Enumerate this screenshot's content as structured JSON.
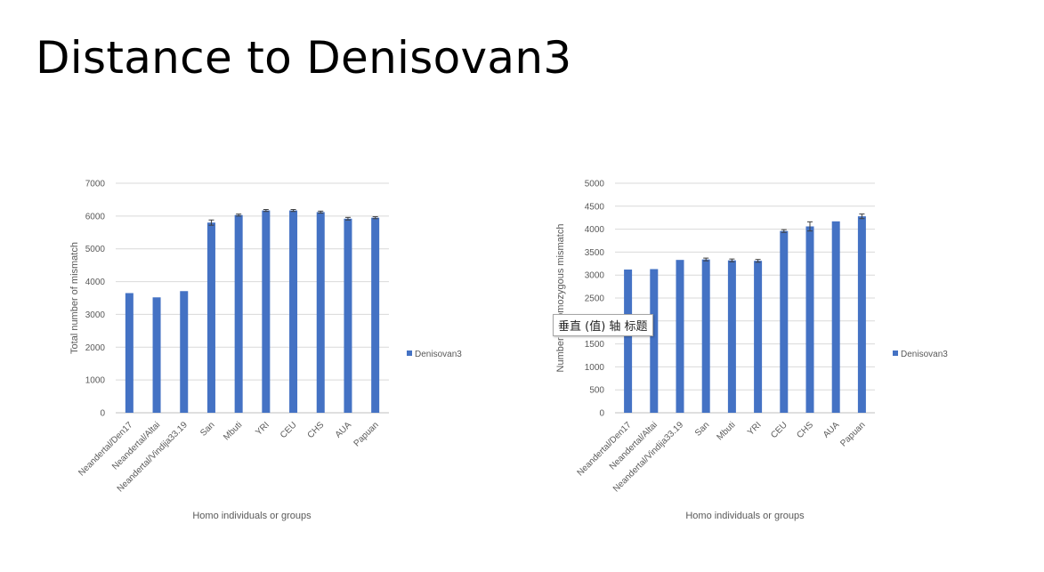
{
  "slide": {
    "title": "Distance to Denisovan3"
  },
  "tooltip": {
    "text": "垂直 (值) 轴 标题"
  },
  "colors": {
    "bar": "#4472c4",
    "grid": "#d9d9d9",
    "axis": "#bfbfbf",
    "error": "#404040"
  },
  "chart_data": [
    {
      "type": "bar",
      "categories": [
        "Neandertal/Den17",
        "Neandertal/Altai",
        "Neandertal/Vindija33.19",
        "San",
        "Mbuti",
        "YRI",
        "CEU",
        "CHS",
        "AUA",
        "Papuan"
      ],
      "series": [
        {
          "name": "Denisovan3",
          "values": [
            3650,
            3520,
            3710,
            5800,
            6030,
            6170,
            6170,
            6120,
            5920,
            5950
          ],
          "errors": [
            0,
            0,
            0,
            80,
            30,
            30,
            30,
            30,
            40,
            30
          ]
        }
      ],
      "xlabel": "Homo individuals or groups",
      "ylabel": "Total number of mismatch",
      "ylim": [
        0,
        7000
      ],
      "yticks": [
        0,
        1000,
        2000,
        3000,
        4000,
        5000,
        6000,
        7000
      ],
      "grid": true,
      "legend": "right"
    },
    {
      "type": "bar",
      "categories": [
        "Neandertal/Den17",
        "Neandertal/Altai",
        "Neandertal/Vindija33.19",
        "San",
        "Mbuti",
        "YRI",
        "CEU",
        "CHS",
        "AUA",
        "Papuan"
      ],
      "series": [
        {
          "name": "Denisovan3",
          "values": [
            3120,
            3130,
            3330,
            3340,
            3320,
            3310,
            3960,
            4060,
            4170,
            4280
          ],
          "errors": [
            0,
            0,
            0,
            30,
            30,
            30,
            30,
            100,
            0,
            50
          ]
        }
      ],
      "xlabel": "Homo individuals or groups",
      "ylabel": "Number of homozygous mismatch",
      "ylim": [
        0,
        5000
      ],
      "yticks": [
        0,
        500,
        1000,
        1500,
        2000,
        2500,
        3000,
        3500,
        4000,
        4500,
        5000
      ],
      "grid": true,
      "legend": "right"
    }
  ]
}
